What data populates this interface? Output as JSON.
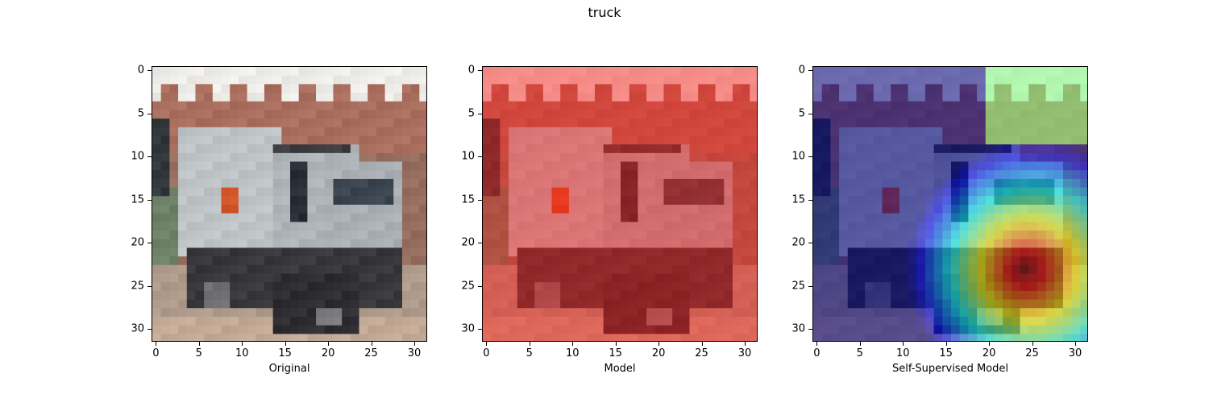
{
  "figure": {
    "title": "truck"
  },
  "panels": [
    {
      "name": "original",
      "xlabel": "Original",
      "overlay": "none"
    },
    {
      "name": "model",
      "xlabel": "Model",
      "overlay": "red-tint"
    },
    {
      "name": "self-supervised",
      "xlabel": "Self-Supervised Model",
      "overlay": "jet-heatmap"
    }
  ],
  "axes": {
    "x_ticks": [
      "0",
      "5",
      "10",
      "15",
      "20",
      "25",
      "30"
    ],
    "y_ticks": [
      "0",
      "5",
      "10",
      "15",
      "20",
      "25",
      "30"
    ],
    "xlim": [
      -0.5,
      31.5
    ],
    "ylim": [
      31.5,
      -0.5
    ]
  },
  "colors": {
    "model_tint": "#ff3b2f",
    "heat_cold": "#00008f",
    "heat_mid": "#7fff7f",
    "heat_hot": "#7f0000"
  }
}
